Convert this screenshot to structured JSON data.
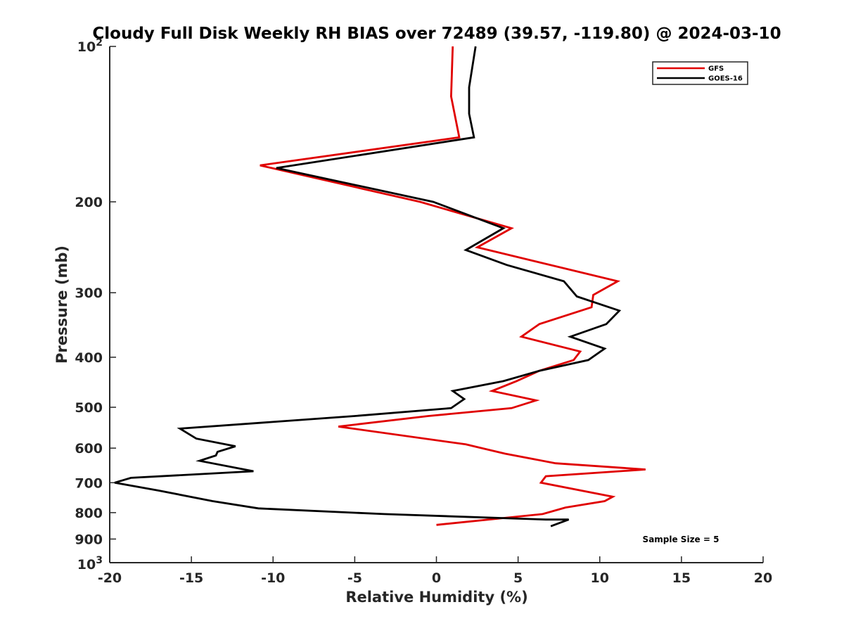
{
  "chart_data": {
    "type": "line",
    "title": "Cloudy Full Disk Weekly RH BIAS over 72489 (39.57, -119.80) @ 2024-03-10",
    "xlabel": "Relative Humidity (%)",
    "ylabel": "Pressure (mb)",
    "xlim": [
      -20,
      20
    ],
    "ylim": [
      100,
      1000
    ],
    "y_scale": "log",
    "y_reversed": true,
    "grid": false,
    "legend_position": "top-right",
    "x_ticks": [
      "-20",
      "-15",
      "-10",
      "-5",
      "0",
      "5",
      "10",
      "15",
      "20"
    ],
    "y_tick_labels": {
      "top_base": "10",
      "top_exp": "2",
      "bottom_base": "10",
      "bottom_exp": "3",
      "middle": [
        "200",
        "300",
        "400",
        "500",
        "600",
        "700",
        "800",
        "900"
      ]
    },
    "annotation": "Sample Size = 5",
    "series": [
      {
        "name": "GFS",
        "color": "#e00000",
        "points": [
          [
            1.0,
            100
          ],
          [
            0.9,
            125
          ],
          [
            1.4,
            150
          ],
          [
            -10.8,
            170
          ],
          [
            -1.0,
            200
          ],
          [
            4.6,
            225
          ],
          [
            2.5,
            245
          ],
          [
            11.1,
            285
          ],
          [
            9.6,
            303
          ],
          [
            9.5,
            320
          ],
          [
            6.3,
            345
          ],
          [
            5.2,
            365
          ],
          [
            8.8,
            390
          ],
          [
            8.4,
            405
          ],
          [
            6.3,
            425
          ],
          [
            4.9,
            445
          ],
          [
            3.4,
            465
          ],
          [
            6.1,
            485
          ],
          [
            4.6,
            502
          ],
          [
            -0.5,
            520
          ],
          [
            -6.0,
            545
          ],
          [
            1.8,
            590
          ],
          [
            4.2,
            615
          ],
          [
            7.3,
            642
          ],
          [
            12.8,
            660
          ],
          [
            6.7,
            680
          ],
          [
            6.4,
            700
          ],
          [
            10.8,
            745
          ],
          [
            10.3,
            760
          ],
          [
            7.9,
            782
          ],
          [
            6.5,
            805
          ],
          [
            0.0,
            845
          ]
        ]
      },
      {
        "name": "GOES-16",
        "color": "#000000",
        "points": [
          [
            2.4,
            100
          ],
          [
            2.0,
            120
          ],
          [
            2.0,
            135
          ],
          [
            2.3,
            150
          ],
          [
            -9.8,
            172
          ],
          [
            -0.2,
            200
          ],
          [
            4.1,
            225
          ],
          [
            1.8,
            248
          ],
          [
            4.3,
            265
          ],
          [
            7.8,
            285
          ],
          [
            8.6,
            305
          ],
          [
            11.2,
            325
          ],
          [
            10.4,
            345
          ],
          [
            8.2,
            365
          ],
          [
            10.3,
            385
          ],
          [
            9.3,
            405
          ],
          [
            6.3,
            425
          ],
          [
            4.1,
            445
          ],
          [
            1.0,
            465
          ],
          [
            1.7,
            482
          ],
          [
            0.9,
            502
          ],
          [
            -5.0,
            520
          ],
          [
            -15.7,
            550
          ],
          [
            -14.7,
            575
          ],
          [
            -12.3,
            595
          ],
          [
            -13.4,
            610
          ],
          [
            -13.5,
            620
          ],
          [
            -14.5,
            635
          ],
          [
            -11.2,
            665
          ],
          [
            -18.7,
            685
          ],
          [
            -19.7,
            700
          ],
          [
            -17.0,
            725
          ],
          [
            -13.7,
            760
          ],
          [
            -10.9,
            785
          ],
          [
            -3.2,
            805
          ],
          [
            6.7,
            825
          ],
          [
            8.1,
            825
          ],
          [
            7.0,
            850
          ]
        ]
      }
    ]
  }
}
